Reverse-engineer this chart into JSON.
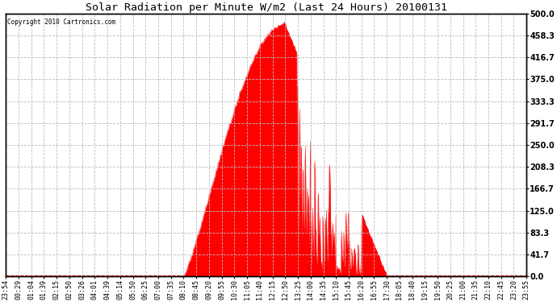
{
  "title": "Solar Radiation per Minute W/m2 (Last 24 Hours) 20100131",
  "copyright": "Copyright 2010 Cartronics.com",
  "ylabel_right": [
    "500.0",
    "458.3",
    "416.7",
    "375.0",
    "333.3",
    "291.7",
    "250.0",
    "208.3",
    "166.7",
    "125.0",
    "83.3",
    "41.7",
    "0.0"
  ],
  "ymax": 500.0,
  "ymin": 0.0,
  "background_color": "#ffffff",
  "plot_bg_color": "#ffffff",
  "bar_color": "#ff0000",
  "grid_color": "#bbbbbb",
  "border_color": "#000000",
  "x_labels": [
    "23:54",
    "00:29",
    "01:04",
    "01:39",
    "02:15",
    "02:50",
    "03:26",
    "04:01",
    "04:39",
    "05:14",
    "05:50",
    "06:25",
    "07:00",
    "07:35",
    "08:10",
    "08:45",
    "09:20",
    "09:55",
    "10:30",
    "11:05",
    "11:40",
    "12:15",
    "12:50",
    "13:25",
    "14:00",
    "14:35",
    "15:10",
    "15:45",
    "16:20",
    "16:55",
    "17:30",
    "18:05",
    "18:40",
    "19:15",
    "19:50",
    "20:25",
    "21:00",
    "21:35",
    "22:10",
    "22:45",
    "23:20",
    "23:55"
  ],
  "sunrise_label_idx": 14,
  "sunset_label_idx": 30,
  "peak_label_idx": 22,
  "peak_value": 480,
  "n_points": 1440
}
